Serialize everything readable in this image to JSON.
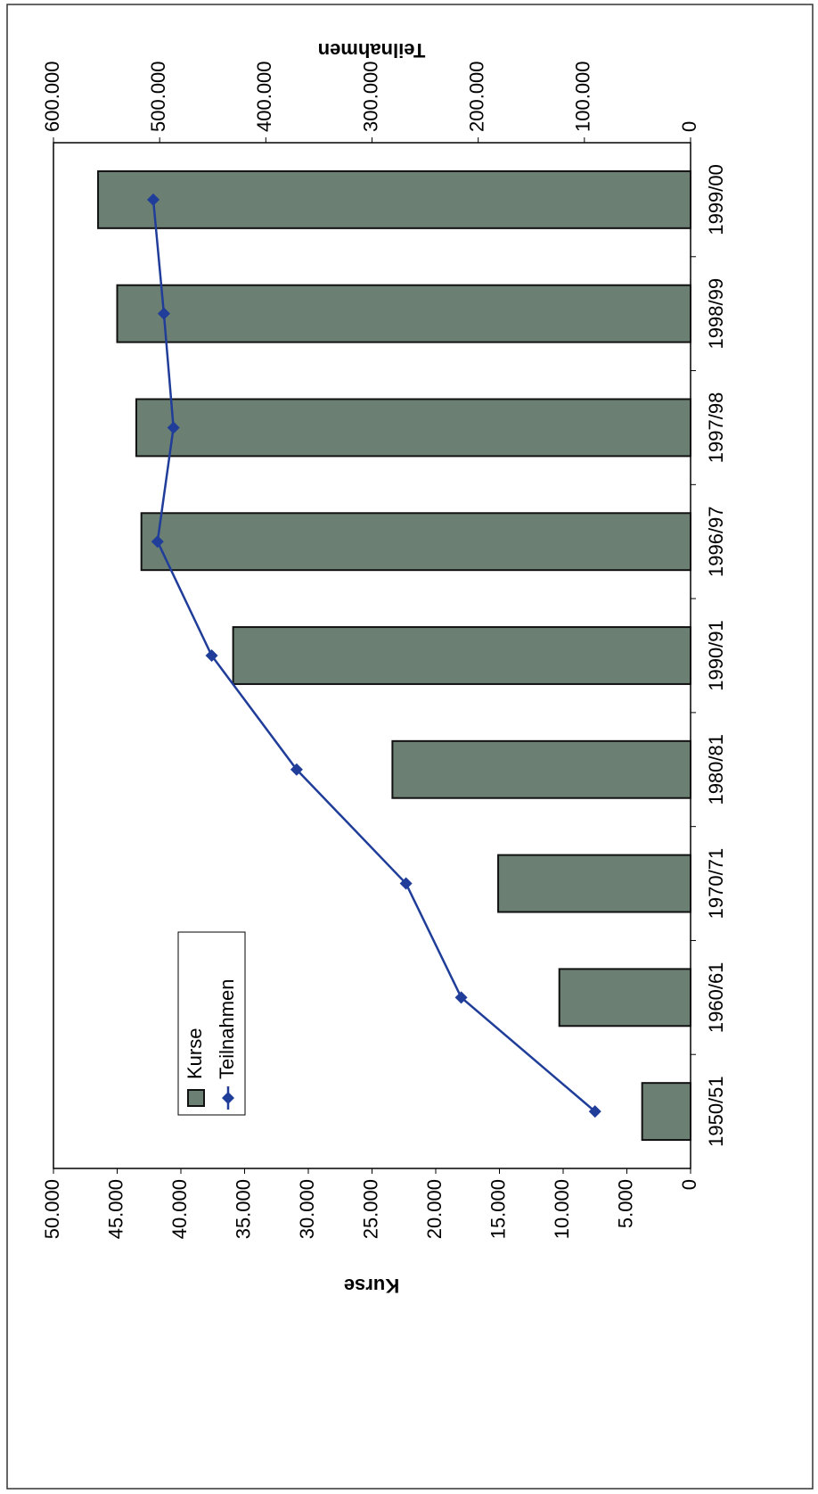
{
  "chart_data": {
    "type": "bar_line",
    "categories": [
      "1950/51",
      "1960/61",
      "1970/71",
      "1980/81",
      "1990/91",
      "1996/97",
      "1997/98",
      "1998/99",
      "1999/00"
    ],
    "series": [
      {
        "name": "Kurse",
        "type": "bar",
        "color": "#6b7f73",
        "values": [
          3800,
          10300,
          15100,
          23400,
          35900,
          43100,
          43500,
          45000,
          46500
        ]
      },
      {
        "name": "Teilnahmen",
        "type": "line",
        "axis": "y2",
        "color": "#1f3d99",
        "values": [
          90000,
          216000,
          268000,
          371000,
          451000,
          502000,
          487000,
          496000,
          506000
        ]
      }
    ],
    "ylabel": "Kurse",
    "y2label": "Teilnahmen",
    "ylim": [
      0,
      50000
    ],
    "yticks": [
      0,
      {
        "value": 5000,
        "label": "5.000"
      },
      {
        "value": 10000,
        "label": "10.000"
      },
      {
        "value": 15000,
        "label": "15.000"
      },
      {
        "value": 20000,
        "label": "20.000"
      },
      {
        "value": 25000,
        "label": "25.000"
      },
      {
        "value": 30000,
        "label": "30.000"
      },
      {
        "value": 35000,
        "label": "35.000"
      },
      {
        "value": 40000,
        "label": "40.000"
      },
      {
        "value": 45000,
        "label": "45.000"
      },
      {
        "value": 50000,
        "label": "50.000"
      }
    ],
    "y2lim": [
      0,
      600000
    ],
    "y2ticks": [
      0,
      {
        "value": 100000,
        "label": "100.000"
      },
      {
        "value": 200000,
        "label": "200.000"
      },
      {
        "value": 300000,
        "label": "300.000"
      },
      {
        "value": 400000,
        "label": "400.000"
      },
      {
        "value": 500000,
        "label": "500.000"
      },
      {
        "value": 600000,
        "label": "600.000"
      }
    ],
    "legend": "upper left"
  }
}
